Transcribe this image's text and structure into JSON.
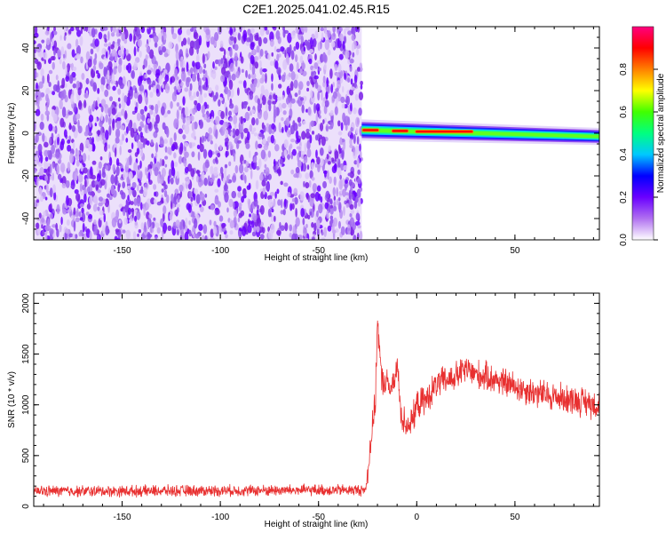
{
  "title": "C2E1.2025.041.02.45.R15",
  "colors": {
    "spectrogram_noise": "#7a1fe6",
    "signal_line": "#e83030",
    "colorbar_stops": [
      "#ffffff",
      "#b070f0",
      "#6a00ff",
      "#0000ff",
      "#00c8ff",
      "#00ff80",
      "#40ff00",
      "#ffff00",
      "#ff8000",
      "#ff0000",
      "#ff0080"
    ]
  },
  "chart_data": [
    {
      "type": "heatmap",
      "xlabel": "Height of straight line (km)",
      "ylabel": "Frequency (Hz)",
      "xlim": [
        -195,
        93
      ],
      "ylim": [
        -50,
        50
      ],
      "xticks": [
        -150,
        -100,
        -50,
        0,
        50
      ],
      "yticks": [
        -40,
        -20,
        0,
        20,
        40
      ],
      "x_minor_step": 10,
      "y_minor_step": 5,
      "noise_region_x": [
        -195,
        -28
      ],
      "signal_region": {
        "x": [
          -28,
          93
        ],
        "frequency_start_hz": 1.5,
        "frequency_end_hz": -1.5,
        "peak_amplitude_segments": [
          [
            -27,
            -20
          ],
          [
            -12,
            -5
          ],
          [
            0,
            28
          ]
        ]
      },
      "colorbar": {
        "label": "Normalized spectral amplitude",
        "ticks": [
          0.0,
          0.2,
          0.4,
          0.6,
          0.8
        ],
        "range": [
          0,
          1
        ]
      }
    },
    {
      "type": "line",
      "xlabel": "Height of straight line (km)",
      "ylabel": "SNR (10 * v/v)",
      "xlim": [
        -195,
        93
      ],
      "ylim": [
        0,
        2100
      ],
      "xticks": [
        -150,
        -100,
        -50,
        0,
        50
      ],
      "yticks": [
        0,
        500,
        1000,
        1500,
        2000
      ],
      "series": [
        {
          "x": [
            -195,
            -150,
            -100,
            -50,
            -26,
            -23,
            -21,
            -20,
            -18,
            -15,
            -12,
            -10,
            -8,
            -5,
            -2,
            0,
            5,
            10,
            20,
            25,
            30,
            40,
            50,
            60,
            70,
            80,
            93
          ],
          "values": [
            150,
            150,
            155,
            160,
            160,
            700,
            1050,
            1850,
            1250,
            1200,
            1150,
            1400,
            900,
            800,
            850,
            1000,
            1050,
            1200,
            1280,
            1350,
            1300,
            1250,
            1180,
            1120,
            1080,
            1050,
            1000
          ]
        }
      ]
    }
  ]
}
